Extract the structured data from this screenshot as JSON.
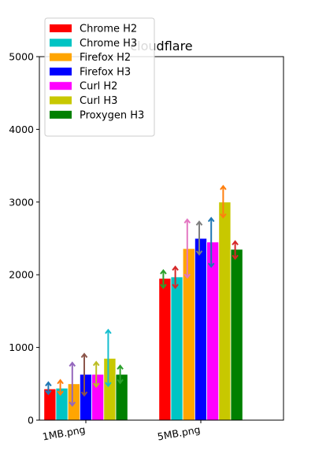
{
  "chart_data": {
    "type": "bar",
    "title": "cloudflare",
    "xlabel": "",
    "ylabel": "",
    "ylim": [
      0,
      5000
    ],
    "yticks": [
      0,
      1000,
      2000,
      3000,
      4000,
      5000
    ],
    "categories": [
      "1MB.png",
      "5MB.png"
    ],
    "legend_position": "top-left",
    "grid": false,
    "series": [
      {
        "name": "Chrome H2",
        "color": "#ff0000",
        "values": [
          430,
          1950
        ],
        "err_low": [
          360,
          1820
        ],
        "err_high": [
          520,
          2060
        ]
      },
      {
        "name": "Chrome H3",
        "color": "#00c4c4",
        "values": [
          440,
          1970
        ],
        "err_low": [
          350,
          1820
        ],
        "err_high": [
          550,
          2110
        ]
      },
      {
        "name": "Firefox H2",
        "color": "#ffa500",
        "values": [
          500,
          2360
        ],
        "err_low": [
          200,
          1960
        ],
        "err_high": [
          790,
          2760
        ]
      },
      {
        "name": "Firefox H3",
        "color": "#0000ff",
        "values": [
          630,
          2500
        ],
        "err_low": [
          340,
          2280
        ],
        "err_high": [
          910,
          2730
        ]
      },
      {
        "name": "Curl H2",
        "color": "#ff00ff",
        "values": [
          630,
          2450
        ],
        "err_low": [
          460,
          2110
        ],
        "err_high": [
          800,
          2780
        ]
      },
      {
        "name": "Curl H3",
        "color": "#c8c800",
        "values": [
          850,
          3000
        ],
        "err_low": [
          470,
          2790
        ],
        "err_high": [
          1240,
          3220
        ]
      },
      {
        "name": "Proxygen H3",
        "color": "#008000",
        "values": [
          630,
          2350
        ],
        "err_low": [
          510,
          2220
        ],
        "err_high": [
          750,
          2460
        ]
      }
    ],
    "error_bar_colors": [
      [
        "#1f77b4",
        "#2ca02c"
      ],
      [
        "#ff7f0e",
        "#d62728"
      ],
      [
        "#9467bd",
        "#e377c2"
      ],
      [
        "#8c564b",
        "#7f7f7f"
      ],
      [
        "#bcbd22",
        "#1f77b4"
      ],
      [
        "#17becf",
        "#ff7f0e"
      ],
      [
        "#2ca02c",
        "#d62728"
      ]
    ]
  }
}
